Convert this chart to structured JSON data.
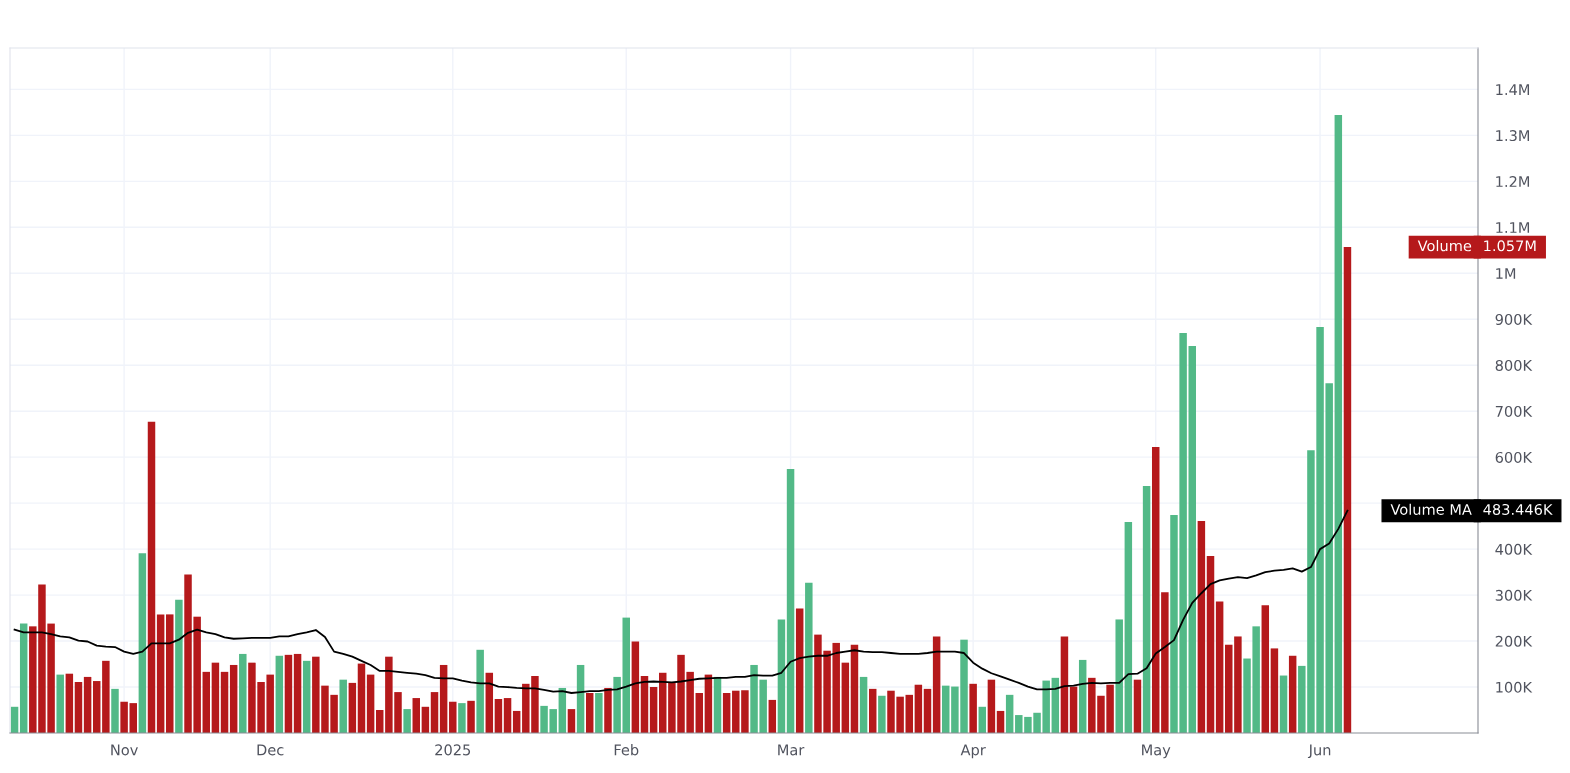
{
  "chart_data": {
    "type": "bar",
    "categories": [
      null,
      null,
      null,
      null,
      null,
      null,
      null,
      null,
      null,
      null,
      null,
      null,
      "Nov",
      null,
      null,
      null,
      null,
      null,
      null,
      null,
      null,
      null,
      null,
      null,
      null,
      null,
      null,
      null,
      "Dec",
      null,
      null,
      null,
      null,
      null,
      null,
      null,
      null,
      null,
      null,
      null,
      null,
      null,
      null,
      null,
      null,
      null,
      null,
      null,
      "2025",
      null,
      null,
      null,
      null,
      null,
      null,
      null,
      null,
      null,
      null,
      null,
      null,
      null,
      null,
      null,
      null,
      null,
      null,
      "Feb",
      null,
      null,
      null,
      null,
      null,
      null,
      null,
      null,
      null,
      null,
      null,
      null,
      null,
      null,
      null,
      null,
      null,
      "Mar",
      null,
      null,
      null,
      null,
      null,
      null,
      null,
      null,
      null,
      null,
      null,
      null,
      null,
      null,
      null,
      null,
      null,
      null,
      null,
      "Apr",
      null,
      null,
      null,
      null,
      null,
      null,
      null,
      null,
      null,
      null,
      null,
      null,
      null,
      null,
      null,
      null,
      null,
      null,
      null,
      "May",
      null,
      null,
      null,
      null,
      null,
      null,
      null,
      null,
      null,
      null,
      null,
      null,
      null,
      null,
      null,
      null,
      null,
      "Jun",
      null,
      null,
      null
    ],
    "series": [
      {
        "name": "Volume",
        "values": [
          57000,
          238000,
          232000,
          323000,
          238000,
          127000,
          129000,
          111000,
          122000,
          113000,
          157000,
          96000,
          68000,
          65000,
          391000,
          677000,
          258000,
          258000,
          290000,
          345000,
          253000,
          133000,
          153000,
          133000,
          148000,
          172000,
          153000,
          111000,
          127000,
          168000,
          170000,
          172000,
          157000,
          166000,
          103000,
          83000,
          116000,
          109000,
          151000,
          127000,
          50000,
          166000,
          89000,
          52000,
          76000,
          57000,
          89000,
          148000,
          68000,
          65000,
          70000,
          181000,
          131000,
          74000,
          76000,
          48000,
          107000,
          124000,
          59000,
          52000,
          98000,
          52000,
          148000,
          87000,
          87000,
          98000,
          122000,
          251000,
          199000,
          124000,
          100000,
          131000,
          109000,
          170000,
          133000,
          87000,
          127000,
          122000,
          87000,
          92000,
          93000,
          148000,
          116000,
          72000,
          247000,
          574000,
          271000,
          327000,
          214000,
          179000,
          196000,
          153000,
          192000,
          122000,
          96000,
          81000,
          92000,
          79000,
          83000,
          105000,
          96000,
          210000,
          103000,
          101000,
          203000,
          107000,
          57000,
          116000,
          48000,
          83000,
          39000,
          35000,
          44000,
          114000,
          120000,
          210000,
          101000,
          159000,
          120000,
          81000,
          105000,
          247000,
          459000,
          116000,
          537000,
          622000,
          306000,
          474000,
          870000,
          842000,
          461000,
          385000,
          286000,
          192000,
          210000,
          162000,
          232000,
          278000,
          184000,
          125000,
          168000,
          146000,
          615000,
          883000,
          761000,
          1344000,
          1057000
        ],
        "colors": [
          "#52b987",
          "#52b987",
          "#b5191b",
          "#b5191b",
          "#b5191b",
          "#52b987",
          "#b5191b",
          "#b5191b",
          "#b5191b",
          "#b5191b",
          "#b5191b",
          "#52b987",
          "#b5191b",
          "#b5191b",
          "#52b987",
          "#b5191b",
          "#b5191b",
          "#b5191b",
          "#52b987",
          "#b5191b",
          "#b5191b",
          "#b5191b",
          "#b5191b",
          "#b5191b",
          "#b5191b",
          "#52b987",
          "#b5191b",
          "#b5191b",
          "#b5191b",
          "#52b987",
          "#b5191b",
          "#b5191b",
          "#52b987",
          "#b5191b",
          "#b5191b",
          "#b5191b",
          "#52b987",
          "#b5191b",
          "#b5191b",
          "#b5191b",
          "#b5191b",
          "#b5191b",
          "#b5191b",
          "#52b987",
          "#b5191b",
          "#b5191b",
          "#b5191b",
          "#b5191b",
          "#b5191b",
          "#52b987",
          "#b5191b",
          "#52b987",
          "#b5191b",
          "#b5191b",
          "#b5191b",
          "#b5191b",
          "#b5191b",
          "#b5191b",
          "#52b987",
          "#52b987",
          "#52b987",
          "#b5191b",
          "#52b987",
          "#b5191b",
          "#52b987",
          "#b5191b",
          "#52b987",
          "#52b987",
          "#b5191b",
          "#b5191b",
          "#b5191b",
          "#b5191b",
          "#b5191b",
          "#b5191b",
          "#b5191b",
          "#b5191b",
          "#b5191b",
          "#52b987",
          "#b5191b",
          "#b5191b",
          "#b5191b",
          "#52b987",
          "#52b987",
          "#b5191b",
          "#52b987",
          "#52b987",
          "#b5191b",
          "#52b987",
          "#b5191b",
          "#b5191b",
          "#b5191b",
          "#b5191b",
          "#b5191b",
          "#52b987",
          "#b5191b",
          "#52b987",
          "#b5191b",
          "#b5191b",
          "#b5191b",
          "#b5191b",
          "#b5191b",
          "#b5191b",
          "#52b987",
          "#52b987",
          "#52b987",
          "#b5191b",
          "#52b987",
          "#b5191b",
          "#b5191b",
          "#52b987",
          "#52b987",
          "#52b987",
          "#52b987",
          "#52b987",
          "#52b987",
          "#b5191b",
          "#b5191b",
          "#52b987",
          "#b5191b",
          "#b5191b",
          "#b5191b",
          "#52b987",
          "#52b987",
          "#b5191b",
          "#52b987",
          "#b5191b",
          "#b5191b",
          "#52b987",
          "#52b987",
          "#52b987",
          "#b5191b",
          "#b5191b",
          "#b5191b",
          "#b5191b",
          "#b5191b",
          "#52b987",
          "#52b987",
          "#b5191b",
          "#b5191b",
          "#52b987",
          "#b5191b",
          "#52b987",
          "#52b987",
          "#52b987",
          "#52b987",
          "#52b987",
          "#b5191b"
        ]
      },
      {
        "name": "Volume MA",
        "type": "line",
        "color": "#000000",
        "values": [
          225000,
          219000,
          219000,
          219000,
          215000,
          210000,
          208000,
          201000,
          199000,
          190000,
          188000,
          187000,
          177000,
          172000,
          177000,
          195000,
          195000,
          195000,
          203000,
          218000,
          225000,
          219000,
          215000,
          208000,
          205000,
          206000,
          207000,
          207000,
          207000,
          210000,
          210000,
          215000,
          219000,
          224000,
          209000,
          177000,
          172000,
          166000,
          157000,
          148000,
          135000,
          135000,
          133000,
          131000,
          129000,
          126000,
          120000,
          119000,
          119000,
          114000,
          110000,
          108000,
          108000,
          101000,
          100000,
          98000,
          97000,
          97000,
          94000,
          90000,
          91000,
          87000,
          89000,
          91000,
          91000,
          94000,
          95000,
          101000,
          108000,
          111000,
          112000,
          111000,
          110000,
          112000,
          115000,
          118000,
          119000,
          120000,
          120000,
          122000,
          122000,
          126000,
          125000,
          125000,
          131000,
          155000,
          163000,
          166000,
          168000,
          168000,
          174000,
          177000,
          180000,
          177000,
          176000,
          176000,
          174000,
          172000,
          172000,
          172000,
          174000,
          177000,
          177000,
          177000,
          174000,
          153000,
          140000,
          130000,
          123000,
          116000,
          109000,
          101000,
          95000,
          95000,
          96000,
          102000,
          103000,
          107000,
          109000,
          108000,
          109000,
          109000,
          128000,
          129000,
          141000,
          173000,
          187000,
          202000,
          246000,
          283000,
          304000,
          324000,
          332000,
          336000,
          339000,
          337000,
          343000,
          350000,
          353000,
          355000,
          358000,
          351000,
          361000,
          400000,
          412000,
          444000,
          483446
        ]
      }
    ],
    "annotations": [
      "1.057M",
      "483.446K"
    ],
    "ylim": [
      0,
      1490000
    ],
    "yticks": [
      {
        "value": 100000,
        "label": "100K"
      },
      {
        "value": 200000,
        "label": "200K"
      },
      {
        "value": 300000,
        "label": "300K"
      },
      {
        "value": 400000,
        "label": "400K"
      },
      {
        "value": 500000,
        "label": null
      },
      {
        "value": 600000,
        "label": "600K"
      },
      {
        "value": 700000,
        "label": "700K"
      },
      {
        "value": 800000,
        "label": "800K"
      },
      {
        "value": 900000,
        "label": "900K"
      },
      {
        "value": 1000000,
        "label": "1M"
      },
      {
        "value": 1100000,
        "label": "1.1M"
      },
      {
        "value": 1200000,
        "label": "1.2M"
      },
      {
        "value": 1300000,
        "label": "1.3M"
      },
      {
        "value": 1400000,
        "label": "1.4M"
      }
    ],
    "grid": true,
    "marker": "none",
    "line_style": "solid"
  }
}
